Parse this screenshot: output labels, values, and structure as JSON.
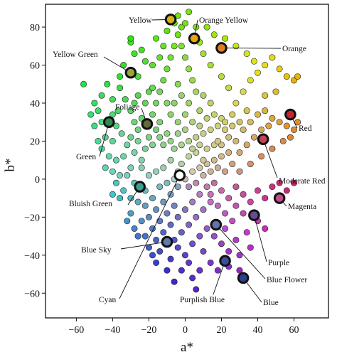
{
  "chart_data": {
    "type": "scatter",
    "xlabel": "a*",
    "ylabel": "b*",
    "xlim": [
      -77,
      79
    ],
    "ylim": [
      -73,
      92
    ],
    "xticks": [
      -60,
      -40,
      -20,
      0,
      20,
      40,
      60
    ],
    "yticks": [
      80,
      60,
      40,
      20,
      0,
      -20,
      -40,
      -60
    ],
    "xtick_labels": [
      "−60",
      "−40",
      "−20",
      "0",
      "20",
      "40",
      "60"
    ],
    "ytick_labels": [
      "80",
      "60",
      "40",
      "20",
      "0",
      "−20",
      "−40",
      "−60"
    ],
    "grid": false,
    "highlighted": [
      {
        "label": "Yellow",
        "x": -8,
        "y": 84,
        "color": "#d7b21a"
      },
      {
        "label": "Orange Yellow",
        "x": 5,
        "y": 74,
        "color": "#e7a415"
      },
      {
        "label": "Orange",
        "x": 20,
        "y": 69,
        "color": "#de7d26"
      },
      {
        "label": "Yellow Green",
        "x": -30,
        "y": 56,
        "color": "#9aa43a"
      },
      {
        "label": "Foliage",
        "x": -21,
        "y": 29,
        "color": "#5f6b3c"
      },
      {
        "label": "Red",
        "x": 58,
        "y": 34,
        "color": "#c8282d"
      },
      {
        "label": "Green",
        "x": -42,
        "y": 30,
        "color": "#2f8a4c"
      },
      {
        "label": "Moderate Red",
        "x": 43,
        "y": 21,
        "color": "#c24356"
      },
      {
        "label": "Bluish Green",
        "x": -25,
        "y": -4,
        "color": "#3aa28c"
      },
      {
        "label": "Magenta",
        "x": 52,
        "y": -10,
        "color": "#c14a8c"
      },
      {
        "label": "Blue Sky",
        "x": -10,
        "y": -33,
        "color": "#5d7ba7"
      },
      {
        "label": "Purple",
        "x": 38,
        "y": -19,
        "color": "#6b4a92"
      },
      {
        "label": "Blue Flower",
        "x": 17,
        "y": -24,
        "color": "#6570ae"
      },
      {
        "label": "Cyan",
        "x": -3,
        "y": 2,
        "color": "#ffffff"
      },
      {
        "label": "Purplish Blue",
        "x": 22,
        "y": -43,
        "color": "#3b4f9e"
      },
      {
        "label": "Blue",
        "x": 32,
        "y": -52,
        "color": "#2d3f8f"
      }
    ],
    "points": [
      [
        -43,
        50
      ],
      [
        -40,
        42
      ],
      [
        -37,
        36
      ],
      [
        -38,
        28
      ],
      [
        -44,
        22
      ],
      [
        -40,
        20
      ],
      [
        -35,
        24
      ],
      [
        -32,
        18
      ],
      [
        -46,
        30
      ],
      [
        -48,
        36
      ],
      [
        -36,
        48
      ],
      [
        -33,
        42
      ],
      [
        -30,
        36
      ],
      [
        -28,
        30
      ],
      [
        -26,
        26
      ],
      [
        -30,
        22
      ],
      [
        -34,
        12
      ],
      [
        -38,
        10
      ],
      [
        -40,
        4
      ],
      [
        -36,
        2
      ],
      [
        -30,
        6
      ],
      [
        -28,
        14
      ],
      [
        -24,
        10
      ],
      [
        -22,
        16
      ],
      [
        -26,
        20
      ],
      [
        -20,
        22
      ],
      [
        -18,
        18
      ],
      [
        -16,
        26
      ],
      [
        -14,
        22
      ],
      [
        -12,
        18
      ],
      [
        -10,
        24
      ],
      [
        -8,
        20
      ],
      [
        -6,
        16
      ],
      [
        -14,
        30
      ],
      [
        -18,
        34
      ],
      [
        -16,
        40
      ],
      [
        -22,
        40
      ],
      [
        -26,
        44
      ],
      [
        -20,
        46
      ],
      [
        -14,
        46
      ],
      [
        -12,
        52
      ],
      [
        -10,
        58
      ],
      [
        -8,
        64
      ],
      [
        -6,
        70
      ],
      [
        -4,
        76
      ],
      [
        -2,
        80
      ],
      [
        -6,
        82
      ],
      [
        -10,
        78
      ],
      [
        -12,
        70
      ],
      [
        -14,
        64
      ],
      [
        -18,
        60
      ],
      [
        -22,
        62
      ],
      [
        -24,
        68
      ],
      [
        -28,
        66
      ],
      [
        -30,
        72
      ],
      [
        -16,
        74
      ],
      [
        -2,
        70
      ],
      [
        0,
        64
      ],
      [
        2,
        58
      ],
      [
        4,
        52
      ],
      [
        6,
        46
      ],
      [
        2,
        40
      ],
      [
        -2,
        44
      ],
      [
        -4,
        50
      ],
      [
        0,
        34
      ],
      [
        4,
        30
      ],
      [
        8,
        28
      ],
      [
        10,
        24
      ],
      [
        14,
        26
      ],
      [
        18,
        28
      ],
      [
        12,
        32
      ],
      [
        16,
        34
      ],
      [
        20,
        32
      ],
      [
        22,
        26
      ],
      [
        24,
        22
      ],
      [
        20,
        18
      ],
      [
        16,
        18
      ],
      [
        12,
        16
      ],
      [
        8,
        18
      ],
      [
        6,
        14
      ],
      [
        2,
        12
      ],
      [
        -2,
        8
      ],
      [
        -4,
        4
      ],
      [
        0,
        0
      ],
      [
        4,
        4
      ],
      [
        8,
        6
      ],
      [
        12,
        8
      ],
      [
        16,
        10
      ],
      [
        20,
        12
      ],
      [
        24,
        14
      ],
      [
        28,
        20
      ],
      [
        32,
        26
      ],
      [
        36,
        30
      ],
      [
        40,
        34
      ],
      [
        44,
        36
      ],
      [
        48,
        32
      ],
      [
        52,
        30
      ],
      [
        56,
        28
      ],
      [
        60,
        26
      ],
      [
        62,
        30
      ],
      [
        46,
        28
      ],
      [
        42,
        26
      ],
      [
        38,
        22
      ],
      [
        34,
        18
      ],
      [
        30,
        14
      ],
      [
        26,
        8
      ],
      [
        30,
        4
      ],
      [
        36,
        8
      ],
      [
        42,
        12
      ],
      [
        48,
        16
      ],
      [
        54,
        20
      ],
      [
        58,
        22
      ],
      [
        28,
        40
      ],
      [
        32,
        46
      ],
      [
        36,
        52
      ],
      [
        40,
        56
      ],
      [
        44,
        60
      ],
      [
        48,
        64
      ],
      [
        52,
        58
      ],
      [
        56,
        54
      ],
      [
        60,
        52
      ],
      [
        62,
        54
      ],
      [
        24,
        48
      ],
      [
        20,
        54
      ],
      [
        14,
        60
      ],
      [
        10,
        66
      ],
      [
        8,
        72
      ],
      [
        12,
        80
      ],
      [
        16,
        76
      ],
      [
        22,
        74
      ],
      [
        28,
        70
      ],
      [
        34,
        66
      ],
      [
        38,
        62
      ],
      [
        6,
        80
      ],
      [
        0,
        82
      ],
      [
        -4,
        86
      ],
      [
        2,
        88
      ],
      [
        -18,
        48
      ],
      [
        -24,
        32
      ],
      [
        -28,
        40
      ],
      [
        -50,
        40
      ],
      [
        -46,
        44
      ],
      [
        -40,
        34
      ],
      [
        -42,
        12
      ],
      [
        -46,
        16
      ],
      [
        -32,
        2
      ],
      [
        -28,
        -2
      ],
      [
        -22,
        -6
      ],
      [
        -18,
        -10
      ],
      [
        -22,
        -14
      ],
      [
        -26,
        -12
      ],
      [
        -30,
        -10
      ],
      [
        -34,
        -6
      ],
      [
        -38,
        -2
      ],
      [
        -20,
        -20
      ],
      [
        -16,
        -16
      ],
      [
        -12,
        -12
      ],
      [
        -8,
        -8
      ],
      [
        -4,
        -4
      ],
      [
        -6,
        -14
      ],
      [
        -10,
        -18
      ],
      [
        -14,
        -22
      ],
      [
        -18,
        -26
      ],
      [
        -22,
        -30
      ],
      [
        -16,
        -32
      ],
      [
        -12,
        -28
      ],
      [
        -8,
        -24
      ],
      [
        -4,
        -20
      ],
      [
        0,
        -16
      ],
      [
        4,
        -12
      ],
      [
        8,
        -8
      ],
      [
        12,
        -4
      ],
      [
        16,
        -2
      ],
      [
        20,
        -6
      ],
      [
        24,
        -10
      ],
      [
        28,
        -4
      ],
      [
        32,
        -8
      ],
      [
        36,
        -12
      ],
      [
        40,
        -6
      ],
      [
        44,
        -10
      ],
      [
        48,
        -4
      ],
      [
        52,
        -2
      ],
      [
        56,
        -6
      ],
      [
        60,
        -2
      ],
      [
        28,
        -14
      ],
      [
        32,
        -18
      ],
      [
        26,
        -22
      ],
      [
        22,
        -18
      ],
      [
        18,
        -14
      ],
      [
        14,
        -12
      ],
      [
        10,
        -16
      ],
      [
        6,
        -20
      ],
      [
        2,
        -24
      ],
      [
        -2,
        -28
      ],
      [
        -6,
        -32
      ],
      [
        -4,
        -36
      ],
      [
        0,
        -40
      ],
      [
        4,
        -34
      ],
      [
        8,
        -30
      ],
      [
        12,
        -26
      ],
      [
        16,
        -30
      ],
      [
        20,
        -34
      ],
      [
        24,
        -38
      ],
      [
        28,
        -32
      ],
      [
        34,
        -28
      ],
      [
        36,
        -36
      ],
      [
        30,
        -40
      ],
      [
        10,
        -38
      ],
      [
        14,
        -44
      ],
      [
        18,
        -48
      ],
      [
        8,
        -48
      ],
      [
        2,
        -44
      ],
      [
        -2,
        -48
      ],
      [
        4,
        -52
      ],
      [
        -14,
        -38
      ],
      [
        -18,
        -40
      ],
      [
        -8,
        -42
      ],
      [
        -24,
        -22
      ],
      [
        -26,
        -30
      ],
      [
        -30,
        -18
      ],
      [
        40,
        -22
      ],
      [
        44,
        -26
      ],
      [
        14,
        -8
      ],
      [
        22,
        -26
      ],
      [
        2,
        20
      ],
      [
        -4,
        24
      ],
      [
        6,
        22
      ],
      [
        10,
        10
      ],
      [
        -8,
        10
      ],
      [
        -12,
        6
      ],
      [
        -16,
        4
      ],
      [
        -20,
        2
      ],
      [
        -24,
        6
      ],
      [
        -14,
        -4
      ],
      [
        -10,
        -2
      ],
      [
        -6,
        0
      ],
      [
        2,
        -4
      ],
      [
        6,
        -2
      ],
      [
        10,
        2
      ],
      [
        14,
        4
      ],
      [
        18,
        6
      ],
      [
        22,
        4
      ],
      [
        18,
        20
      ],
      [
        22,
        30
      ],
      [
        26,
        34
      ],
      [
        14,
        40
      ],
      [
        10,
        44
      ],
      [
        8,
        36
      ],
      [
        -8,
        34
      ],
      [
        -10,
        40
      ],
      [
        -6,
        40
      ],
      [
        -4,
        30
      ],
      [
        0,
        26
      ],
      [
        -2,
        18
      ],
      [
        4,
        16
      ],
      [
        30,
        30
      ],
      [
        34,
        36
      ],
      [
        26,
        28
      ],
      [
        44,
        44
      ],
      [
        50,
        46
      ],
      [
        -44,
        6
      ],
      [
        -48,
        20
      ],
      [
        -50,
        28
      ],
      [
        -36,
        -10
      ],
      [
        -40,
        -8
      ],
      [
        -32,
        -22
      ],
      [
        -28,
        -26
      ],
      [
        -10,
        -48
      ],
      [
        -6,
        -54
      ],
      [
        6,
        -58
      ],
      [
        -20,
        -36
      ],
      [
        -16,
        -44
      ],
      [
        24,
        -46
      ],
      [
        30,
        -48
      ],
      [
        -56,
        50
      ],
      [
        -52,
        34
      ],
      [
        -34,
        60
      ],
      [
        -30,
        74
      ],
      [
        -26,
        54
      ],
      [
        -36,
        54
      ]
    ]
  },
  "annotations": {
    "yellow": "Yellow",
    "orange_yellow": "Orange Yellow",
    "orange": "Orange",
    "yellow_green": "Yellow Green",
    "foliage": "Foliage",
    "red": "Red",
    "green": "Green",
    "moderate_red": "Moderate Red",
    "bluish_green": "Bluish Green",
    "magenta": "Magenta",
    "blue_sky": "Blue Sky",
    "purple": "Purple",
    "blue_flower": "Blue Flower",
    "cyan": "Cyan",
    "purplish_blue": "Purplish Blue",
    "blue": "Blue"
  }
}
